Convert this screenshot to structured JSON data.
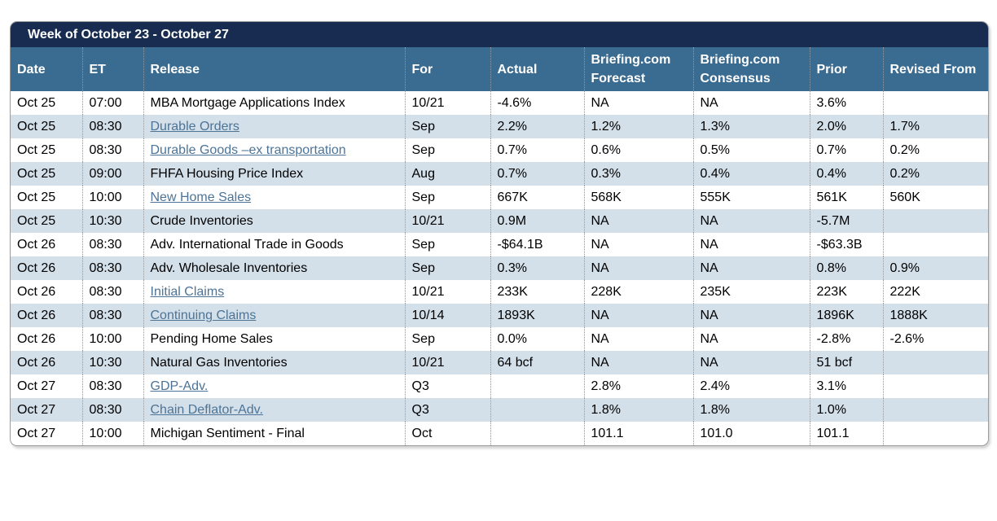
{
  "title": "Week of October 23 - October 27",
  "colors": {
    "title_bar": "#172c50",
    "header": "#3a6b90",
    "alt_row": "#d3dfe9",
    "link": "#4d7496",
    "separator_dotted": "#999999"
  },
  "columns": [
    {
      "key": "date",
      "label": "Date"
    },
    {
      "key": "et",
      "label": "ET"
    },
    {
      "key": "release",
      "label": "Release"
    },
    {
      "key": "for",
      "label": "For"
    },
    {
      "key": "actual",
      "label": "Actual"
    },
    {
      "key": "forecast",
      "label": "Briefing.com Forecast"
    },
    {
      "key": "consensus",
      "label": "Briefing.com Consensus"
    },
    {
      "key": "prior",
      "label": "Prior"
    },
    {
      "key": "revised",
      "label": "Revised From"
    }
  ],
  "rows": [
    {
      "date": "Oct 25",
      "et": "07:00",
      "release": "MBA Mortgage Applications Index",
      "link": false,
      "for": "10/21",
      "actual": "-4.6%",
      "forecast": "NA",
      "consensus": "NA",
      "prior": "3.6%",
      "revised": ""
    },
    {
      "date": "Oct 25",
      "et": "08:30",
      "release": "Durable Orders",
      "link": true,
      "for": "Sep",
      "actual": "2.2%",
      "forecast": "1.2%",
      "consensus": "1.3%",
      "prior": "2.0%",
      "revised": "1.7%"
    },
    {
      "date": "Oct 25",
      "et": "08:30",
      "release": "Durable Goods –ex transportation",
      "link": true,
      "for": "Sep",
      "actual": "0.7%",
      "forecast": "0.6%",
      "consensus": "0.5%",
      "prior": "0.7%",
      "revised": "0.2%"
    },
    {
      "date": "Oct 25",
      "et": "09:00",
      "release": "FHFA Housing Price Index",
      "link": false,
      "for": "Aug",
      "actual": "0.7%",
      "forecast": "0.3%",
      "consensus": "0.4%",
      "prior": "0.4%",
      "revised": "0.2%"
    },
    {
      "date": "Oct 25",
      "et": "10:00",
      "release": "New Home Sales",
      "link": true,
      "for": "Sep",
      "actual": "667K",
      "forecast": "568K",
      "consensus": "555K",
      "prior": "561K",
      "revised": "560K"
    },
    {
      "date": "Oct 25",
      "et": "10:30",
      "release": "Crude Inventories",
      "link": false,
      "for": "10/21",
      "actual": "0.9M",
      "forecast": "NA",
      "consensus": "NA",
      "prior": "-5.7M",
      "revised": ""
    },
    {
      "date": "Oct 26",
      "et": "08:30",
      "release": "Adv. International Trade in Goods",
      "link": false,
      "for": "Sep",
      "actual": "-$64.1B",
      "forecast": "NA",
      "consensus": "NA",
      "prior": "-$63.3B",
      "revised": ""
    },
    {
      "date": "Oct 26",
      "et": "08:30",
      "release": "Adv. Wholesale Inventories",
      "link": false,
      "for": "Sep",
      "actual": "0.3%",
      "forecast": "NA",
      "consensus": "NA",
      "prior": "0.8%",
      "revised": "0.9%"
    },
    {
      "date": "Oct 26",
      "et": "08:30",
      "release": "Initial Claims",
      "link": true,
      "for": "10/21",
      "actual": "233K",
      "forecast": "228K",
      "consensus": "235K",
      "prior": "223K",
      "revised": "222K"
    },
    {
      "date": "Oct 26",
      "et": "08:30",
      "release": "Continuing Claims",
      "link": true,
      "for": "10/14",
      "actual": "1893K",
      "forecast": "NA",
      "consensus": "NA",
      "prior": "1896K",
      "revised": "1888K"
    },
    {
      "date": "Oct 26",
      "et": "10:00",
      "release": "Pending Home Sales",
      "link": false,
      "for": "Sep",
      "actual": "0.0%",
      "forecast": "NA",
      "consensus": "NA",
      "prior": "-2.8%",
      "revised": "-2.6%"
    },
    {
      "date": "Oct 26",
      "et": "10:30",
      "release": "Natural Gas Inventories",
      "link": false,
      "for": "10/21",
      "actual": "64 bcf",
      "forecast": "NA",
      "consensus": "NA",
      "prior": "51 bcf",
      "revised": ""
    },
    {
      "date": "Oct 27",
      "et": "08:30",
      "release": "GDP-Adv.",
      "link": true,
      "for": "Q3",
      "actual": "",
      "forecast": "2.8%",
      "consensus": "2.4%",
      "prior": "3.1%",
      "revised": ""
    },
    {
      "date": "Oct 27",
      "et": "08:30",
      "release": "Chain Deflator-Adv.",
      "link": true,
      "for": "Q3",
      "actual": "",
      "forecast": "1.8%",
      "consensus": "1.8%",
      "prior": "1.0%",
      "revised": ""
    },
    {
      "date": "Oct 27",
      "et": "10:00",
      "release": "Michigan Sentiment - Final",
      "link": false,
      "for": "Oct",
      "actual": "",
      "forecast": "101.1",
      "consensus": "101.0",
      "prior": "101.1",
      "revised": ""
    }
  ]
}
